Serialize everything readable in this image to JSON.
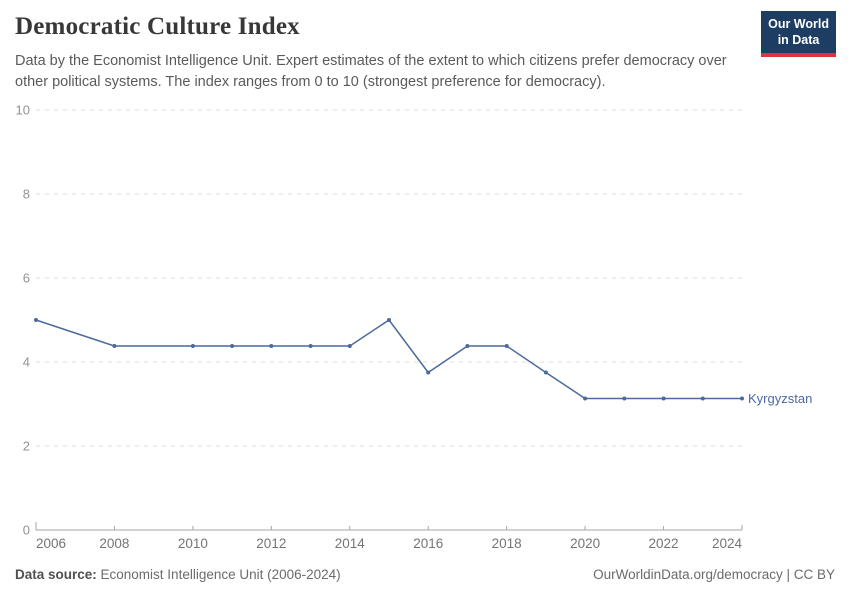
{
  "header": {
    "title": "Democratic Culture Index",
    "subtitle": "Data by the Economist Intelligence Unit. Expert estimates of the extent to which citizens prefer democracy over other political systems. The index ranges from 0 to 10 (strongest preference for democracy).",
    "logo": {
      "line1": "Our World",
      "line2": "in Data",
      "bg_color": "#1d3d63",
      "stripe_color": "#d9353b"
    }
  },
  "chart_data": {
    "type": "line",
    "title": "Democratic Culture Index",
    "xlabel": "",
    "ylabel": "",
    "xlim": [
      2006,
      2024
    ],
    "ylim": [
      0,
      10
    ],
    "yticks": [
      0,
      2,
      4,
      6,
      8,
      10
    ],
    "xticks": [
      2006,
      2008,
      2010,
      2012,
      2014,
      2016,
      2018,
      2020,
      2022,
      2024
    ],
    "grid": "dashed-horizontal",
    "legend_position": "end-of-line-label",
    "series": [
      {
        "name": "Kyrgyzstan",
        "color": "#4c6a9c",
        "x": [
          2006,
          2008,
          2010,
          2011,
          2012,
          2013,
          2014,
          2015,
          2016,
          2017,
          2018,
          2019,
          2020,
          2021,
          2022,
          2023,
          2024
        ],
        "values": [
          5.0,
          4.38,
          4.38,
          4.38,
          4.38,
          4.38,
          4.38,
          5.0,
          3.75,
          4.38,
          4.38,
          3.75,
          3.13,
          3.13,
          3.13,
          3.13,
          3.13
        ]
      }
    ],
    "colors": {
      "line": "#4c6a9c",
      "gridline": "#dedede",
      "axis": "#a6a6a6",
      "ytick_label": "#939393",
      "xtick_label": "#757575"
    }
  },
  "footer": {
    "source_label": "Data source:",
    "source_text": " Economist Intelligence Unit (2006-2024)",
    "right_text": "OurWorldinData.org/democracy | CC BY"
  }
}
